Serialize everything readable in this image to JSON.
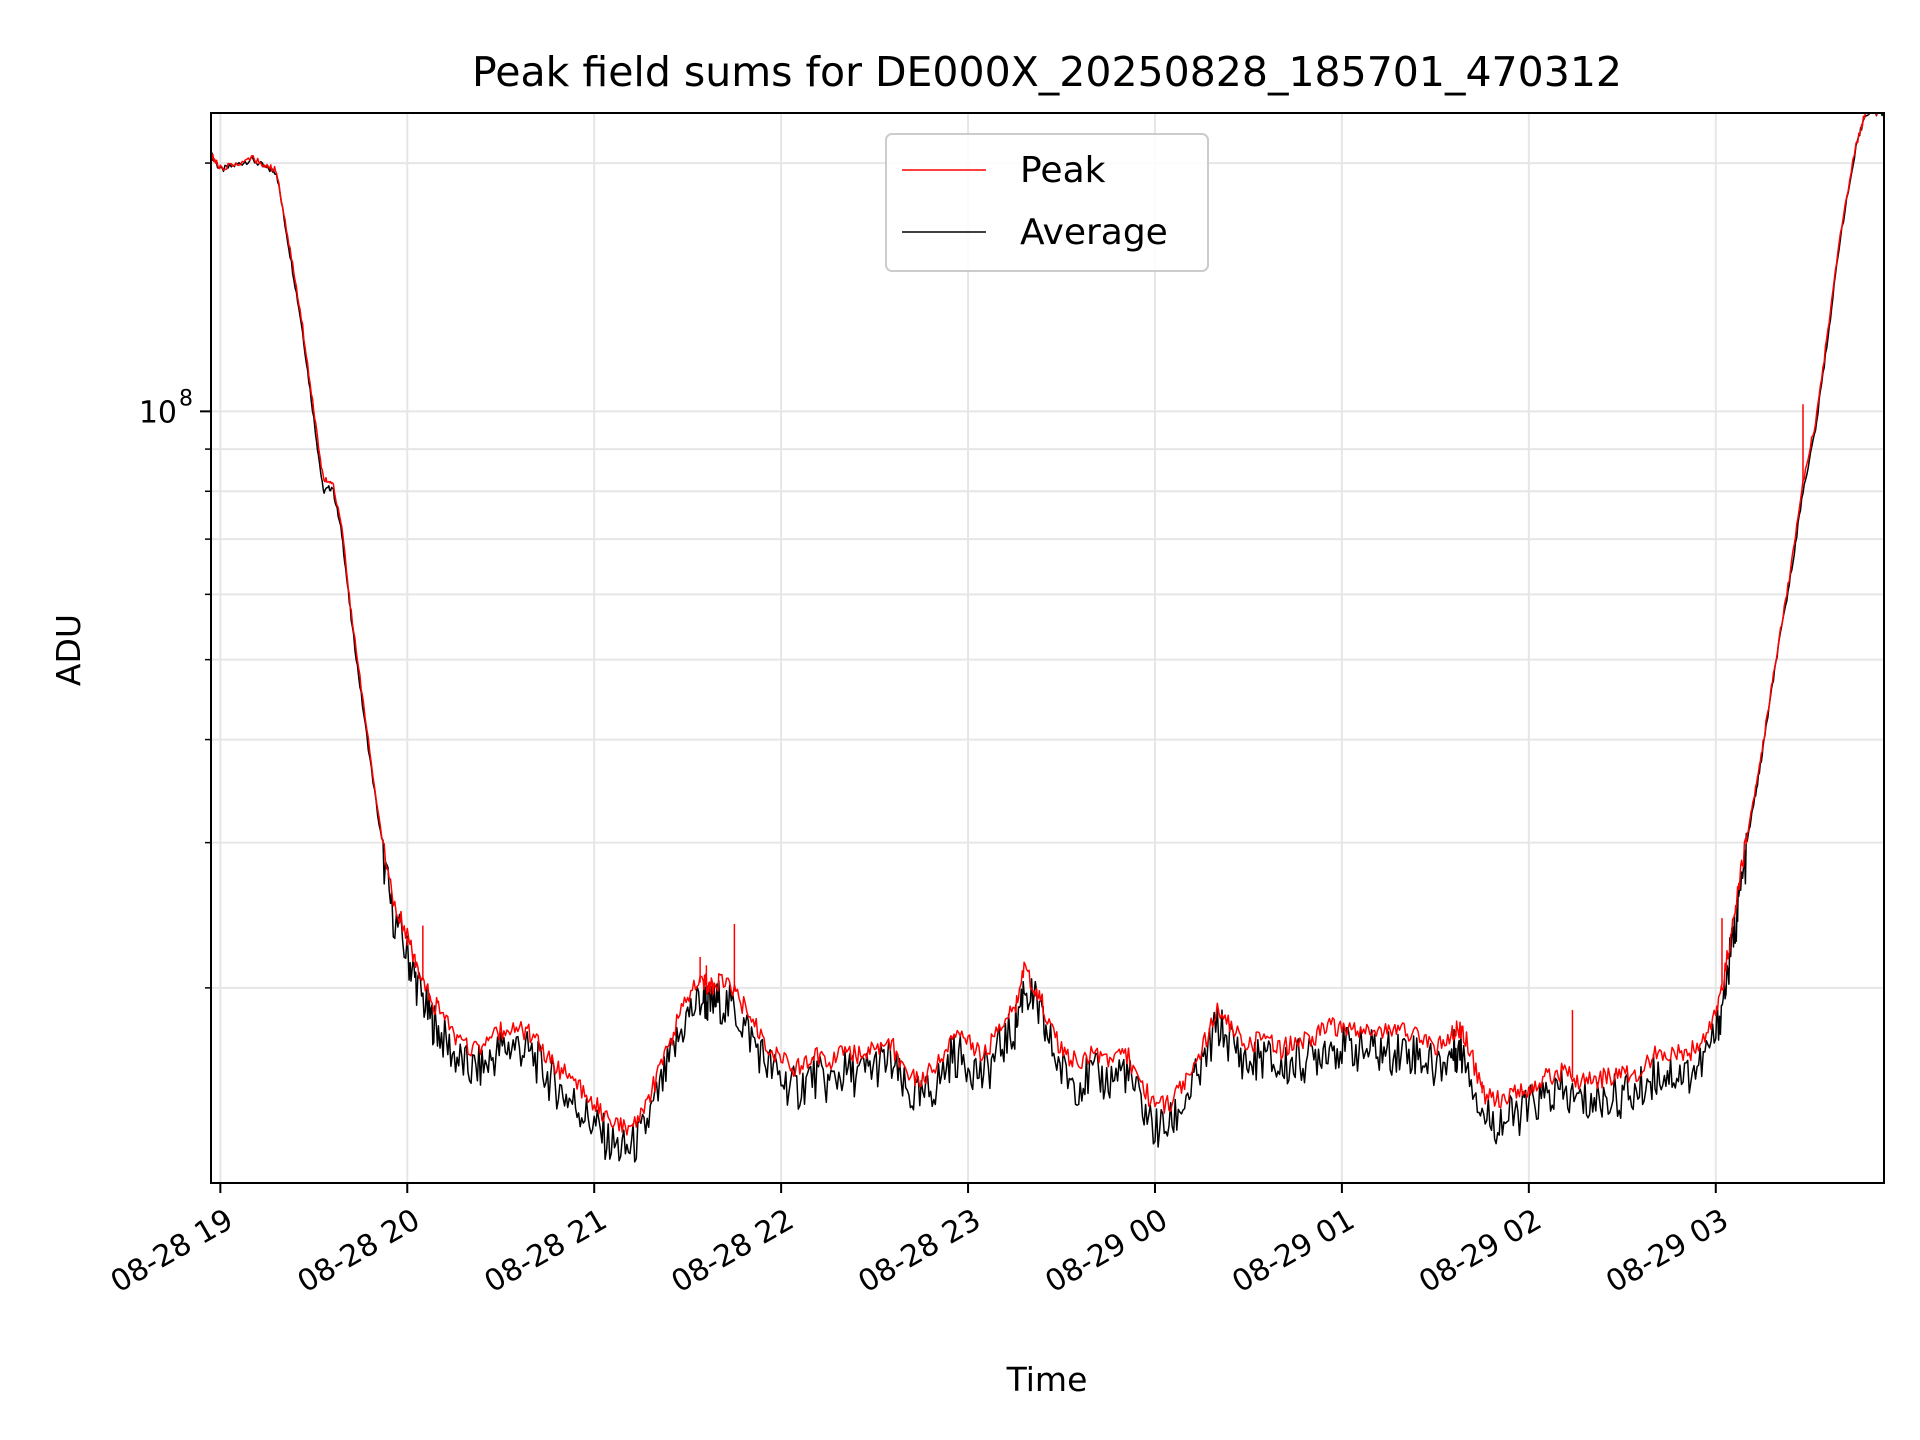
{
  "chart_data": {
    "type": "line",
    "title": "Peak field sums for DE000X_20250828_185701_470312",
    "xlabel": "Time",
    "ylabel": "ADU",
    "x_axis_kind": "time",
    "xlim": [
      "2025-08-28 18:57",
      "2025-08-29 03:54"
    ],
    "ylim": [
      11600000,
      230000000
    ],
    "yscale": "log",
    "grid": true,
    "legend_position": "top-center",
    "x_ticks": [
      {
        "t": "2025-08-28 19:00",
        "label": "08-28 19"
      },
      {
        "t": "2025-08-28 20:00",
        "label": "08-28 20"
      },
      {
        "t": "2025-08-28 21:00",
        "label": "08-28 21"
      },
      {
        "t": "2025-08-28 22:00",
        "label": "08-28 22"
      },
      {
        "t": "2025-08-28 23:00",
        "label": "08-28 23"
      },
      {
        "t": "2025-08-29 00:00",
        "label": "08-29 00"
      },
      {
        "t": "2025-08-29 01:00",
        "label": "08-29 01"
      },
      {
        "t": "2025-08-29 02:00",
        "label": "08-29 02"
      },
      {
        "t": "2025-08-29 03:00",
        "label": "08-29 03"
      }
    ],
    "y_major_ticks": [
      {
        "value": 100000000,
        "base": "10",
        "exp": "8"
      }
    ],
    "y_minor_ticks": [
      20000000,
      30000000,
      40000000,
      50000000,
      60000000,
      70000000,
      80000000,
      90000000,
      200000000
    ],
    "series": [
      {
        "name": "Peak",
        "color": "#ff0000",
        "x": [
          "2025-08-28 18:57",
          "2025-08-28 19:00",
          "2025-08-28 19:05",
          "2025-08-28 19:10",
          "2025-08-28 19:15",
          "2025-08-28 19:18",
          "2025-08-28 19:22",
          "2025-08-28 19:26",
          "2025-08-28 19:30",
          "2025-08-28 19:33",
          "2025-08-28 19:36",
          "2025-08-28 19:39",
          "2025-08-28 19:42",
          "2025-08-28 19:46",
          "2025-08-28 19:51",
          "2025-08-28 19:55",
          "2025-08-28 20:00",
          "2025-08-28 20:03",
          "2025-08-28 20:07",
          "2025-08-28 20:10",
          "2025-08-28 20:15",
          "2025-08-28 20:20",
          "2025-08-28 20:25",
          "2025-08-28 20:30",
          "2025-08-28 20:35",
          "2025-08-28 20:40",
          "2025-08-28 20:45",
          "2025-08-28 20:50",
          "2025-08-28 20:55",
          "2025-08-28 21:00",
          "2025-08-28 21:05",
          "2025-08-28 21:10",
          "2025-08-28 21:15",
          "2025-08-28 21:20",
          "2025-08-28 21:25",
          "2025-08-28 21:30",
          "2025-08-28 21:35",
          "2025-08-28 21:37",
          "2025-08-28 21:40",
          "2025-08-28 21:45",
          "2025-08-28 21:50",
          "2025-08-28 21:55",
          "2025-08-28 22:00",
          "2025-08-28 22:05",
          "2025-08-28 22:10",
          "2025-08-28 22:15",
          "2025-08-28 22:20",
          "2025-08-28 22:25",
          "2025-08-28 22:30",
          "2025-08-28 22:35",
          "2025-08-28 22:40",
          "2025-08-28 22:45",
          "2025-08-28 22:50",
          "2025-08-28 22:55",
          "2025-08-28 23:00",
          "2025-08-28 23:05",
          "2025-08-28 23:10",
          "2025-08-28 23:15",
          "2025-08-28 23:18",
          "2025-08-28 23:22",
          "2025-08-28 23:25",
          "2025-08-28 23:30",
          "2025-08-28 23:35",
          "2025-08-28 23:40",
          "2025-08-28 23:45",
          "2025-08-28 23:50",
          "2025-08-28 23:55",
          "2025-08-29 00:00",
          "2025-08-29 00:05",
          "2025-08-29 00:10",
          "2025-08-29 00:15",
          "2025-08-29 00:20",
          "2025-08-29 00:25",
          "2025-08-29 00:30",
          "2025-08-29 00:35",
          "2025-08-29 00:40",
          "2025-08-29 00:45",
          "2025-08-29 00:50",
          "2025-08-29 00:55",
          "2025-08-29 01:00",
          "2025-08-29 01:05",
          "2025-08-29 01:10",
          "2025-08-29 01:15",
          "2025-08-29 01:20",
          "2025-08-29 01:25",
          "2025-08-29 01:30",
          "2025-08-29 01:35",
          "2025-08-29 01:37",
          "2025-08-29 01:40",
          "2025-08-29 01:45",
          "2025-08-29 01:50",
          "2025-08-29 01:55",
          "2025-08-29 02:00",
          "2025-08-29 02:05",
          "2025-08-29 02:10",
          "2025-08-29 02:15",
          "2025-08-29 02:20",
          "2025-08-29 02:25",
          "2025-08-29 02:30",
          "2025-08-29 02:35",
          "2025-08-29 02:40",
          "2025-08-29 02:45",
          "2025-08-29 02:50",
          "2025-08-29 02:55",
          "2025-08-29 03:00",
          "2025-08-29 03:03",
          "2025-08-29 03:06",
          "2025-08-29 03:08",
          "2025-08-29 03:11",
          "2025-08-29 03:14",
          "2025-08-29 03:17",
          "2025-08-29 03:20",
          "2025-08-29 03:24",
          "2025-08-29 03:28",
          "2025-08-29 03:32",
          "2025-08-29 03:36",
          "2025-08-29 03:40",
          "2025-08-29 03:45",
          "2025-08-29 03:48",
          "2025-08-29 03:54"
        ],
        "y": [
          205000000,
          197000000,
          200000000,
          203000000,
          198000000,
          196000000,
          160000000,
          130000000,
          100000000,
          83000000,
          82000000,
          72000000,
          57000000,
          44000000,
          32000000,
          26000000,
          23000000,
          21500000,
          19500000,
          18800000,
          17500000,
          16800000,
          17000000,
          17800000,
          18000000,
          17500000,
          16500000,
          15800000,
          15200000,
          14500000,
          13800000,
          13500000,
          14000000,
          15500000,
          17500000,
          19500000,
          20500000,
          20000000,
          20300000,
          19800000,
          18500000,
          17200000,
          16400000,
          15900000,
          16600000,
          16200000,
          16700000,
          16600000,
          17000000,
          17200000,
          15800000,
          15500000,
          16200000,
          17500000,
          17200000,
          16500000,
          17800000,
          18800000,
          21000000,
          20000000,
          18600000,
          16800000,
          16200000,
          16600000,
          16300000,
          16900000,
          15500000,
          14300000,
          14500000,
          15600000,
          16800000,
          19000000,
          18000000,
          17000000,
          17500000,
          16800000,
          17200000,
          17300000,
          18000000,
          17900000,
          17800000,
          17700000,
          17600000,
          17800000,
          17500000,
          16900000,
          17500000,
          17800000,
          17400000,
          14900000,
          14600000,
          14800000,
          15200000,
          15600000,
          15800000,
          15500000,
          15400000,
          15600000,
          15700000,
          15800000,
          16600000,
          16700000,
          16600000,
          17000000,
          18500000,
          21000000,
          24500000,
          27500000,
          32000000,
          37000000,
          44000000,
          52000000,
          64000000,
          82000000,
          97000000,
          125000000,
          165000000,
          210000000,
          230000000,
          230000000
        ],
        "spikes": [
          {
            "x": "2025-08-28 20:05",
            "y": 23800000
          },
          {
            "x": "2025-08-28 20:00",
            "y": 22500000
          },
          {
            "x": "2025-08-28 21:34",
            "y": 21800000
          },
          {
            "x": "2025-08-28 21:36",
            "y": 21300000
          },
          {
            "x": "2025-08-28 21:45",
            "y": 23900000
          },
          {
            "x": "2025-08-29 01:45",
            "y": 15400000
          },
          {
            "x": "2025-08-29 02:14",
            "y": 18800000
          },
          {
            "x": "2025-08-29 03:02",
            "y": 24300000
          },
          {
            "x": "2025-08-29 03:28",
            "y": 102000000
          }
        ]
      },
      {
        "name": "Average",
        "color": "#000000",
        "x": [
          "2025-08-28 18:57",
          "2025-08-28 19:00",
          "2025-08-28 19:05",
          "2025-08-28 19:10",
          "2025-08-28 19:15",
          "2025-08-28 19:18",
          "2025-08-28 19:22",
          "2025-08-28 19:26",
          "2025-08-28 19:30",
          "2025-08-28 19:33",
          "2025-08-28 19:36",
          "2025-08-28 19:39",
          "2025-08-28 19:42",
          "2025-08-28 19:46",
          "2025-08-28 19:51",
          "2025-08-28 19:55",
          "2025-08-28 20:00",
          "2025-08-28 20:03",
          "2025-08-28 20:07",
          "2025-08-28 20:10",
          "2025-08-28 20:15",
          "2025-08-28 20:20",
          "2025-08-28 20:25",
          "2025-08-28 20:30",
          "2025-08-28 20:35",
          "2025-08-28 20:40",
          "2025-08-28 20:45",
          "2025-08-28 20:50",
          "2025-08-28 20:55",
          "2025-08-28 21:00",
          "2025-08-28 21:05",
          "2025-08-28 21:10",
          "2025-08-28 21:15",
          "2025-08-28 21:20",
          "2025-08-28 21:25",
          "2025-08-28 21:30",
          "2025-08-28 21:35",
          "2025-08-28 21:37",
          "2025-08-28 21:40",
          "2025-08-28 21:45",
          "2025-08-28 21:50",
          "2025-08-28 21:55",
          "2025-08-28 22:00",
          "2025-08-28 22:05",
          "2025-08-28 22:10",
          "2025-08-28 22:15",
          "2025-08-28 22:20",
          "2025-08-28 22:25",
          "2025-08-28 22:30",
          "2025-08-28 22:35",
          "2025-08-28 22:40",
          "2025-08-28 22:45",
          "2025-08-28 22:50",
          "2025-08-28 22:55",
          "2025-08-28 23:00",
          "2025-08-28 23:05",
          "2025-08-28 23:10",
          "2025-08-28 23:15",
          "2025-08-28 23:18",
          "2025-08-28 23:22",
          "2025-08-28 23:25",
          "2025-08-28 23:30",
          "2025-08-28 23:35",
          "2025-08-28 23:40",
          "2025-08-28 23:45",
          "2025-08-28 23:50",
          "2025-08-28 23:55",
          "2025-08-29 00:00",
          "2025-08-29 00:05",
          "2025-08-29 00:10",
          "2025-08-29 00:15",
          "2025-08-29 00:20",
          "2025-08-29 00:25",
          "2025-08-29 00:30",
          "2025-08-29 00:35",
          "2025-08-29 00:40",
          "2025-08-29 00:45",
          "2025-08-29 00:50",
          "2025-08-29 00:55",
          "2025-08-29 01:00",
          "2025-08-29 01:05",
          "2025-08-29 01:10",
          "2025-08-29 01:15",
          "2025-08-29 01:20",
          "2025-08-29 01:25",
          "2025-08-29 01:30",
          "2025-08-29 01:35",
          "2025-08-29 01:37",
          "2025-08-29 01:40",
          "2025-08-29 01:45",
          "2025-08-29 01:50",
          "2025-08-29 01:55",
          "2025-08-29 02:00",
          "2025-08-29 02:05",
          "2025-08-29 02:10",
          "2025-08-29 02:15",
          "2025-08-29 02:20",
          "2025-08-29 02:25",
          "2025-08-29 02:30",
          "2025-08-29 02:35",
          "2025-08-29 02:40",
          "2025-08-29 02:45",
          "2025-08-29 02:50",
          "2025-08-29 02:55",
          "2025-08-29 03:00",
          "2025-08-29 03:03",
          "2025-08-29 03:06",
          "2025-08-29 03:08",
          "2025-08-29 03:11",
          "2025-08-29 03:14",
          "2025-08-29 03:17",
          "2025-08-29 03:20",
          "2025-08-29 03:24",
          "2025-08-29 03:28",
          "2025-08-29 03:32",
          "2025-08-29 03:36",
          "2025-08-29 03:40",
          "2025-08-29 03:45",
          "2025-08-29 03:48",
          "2025-08-29 03:54"
        ],
        "y": [
          205000000,
          196000000,
          199000000,
          202000000,
          197000000,
          195000000,
          158000000,
          128000000,
          98000000,
          80000000,
          81000000,
          71000000,
          56000000,
          43000000,
          31500000,
          25500000,
          22500000,
          20800000,
          19000000,
          18200000,
          17000000,
          16300000,
          16500000,
          17300000,
          17500000,
          17000000,
          16000000,
          15300000,
          14700000,
          14000000,
          13300000,
          13000000,
          13500000,
          15000000,
          17000000,
          19000000,
          20000000,
          19500000,
          19800000,
          19300000,
          18000000,
          16700000,
          15900000,
          15400000,
          16100000,
          15700000,
          16200000,
          16100000,
          16500000,
          16700000,
          15300000,
          15000000,
          15700000,
          17000000,
          16700000,
          16000000,
          17300000,
          18300000,
          20600000,
          19500000,
          18100000,
          16300000,
          15700000,
          16100000,
          15800000,
          16400000,
          15000000,
          13800000,
          14000000,
          15100000,
          16300000,
          18500000,
          17500000,
          16500000,
          17000000,
          16300000,
          16700000,
          16800000,
          17500000,
          17400000,
          17300000,
          17200000,
          17100000,
          17300000,
          17000000,
          16400000,
          17000000,
          17300000,
          16900000,
          14400000,
          14100000,
          14300000,
          14700000,
          15100000,
          15300000,
          15000000,
          14900000,
          15100000,
          15200000,
          15300000,
          16100000,
          16200000,
          16100000,
          16500000,
          18000000,
          20500000,
          24000000,
          27000000,
          31500000,
          36500000,
          43500000,
          51500000,
          63000000,
          80000000,
          95000000,
          123000000,
          163000000,
          208000000,
          230000000,
          230000000
        ]
      }
    ]
  }
}
